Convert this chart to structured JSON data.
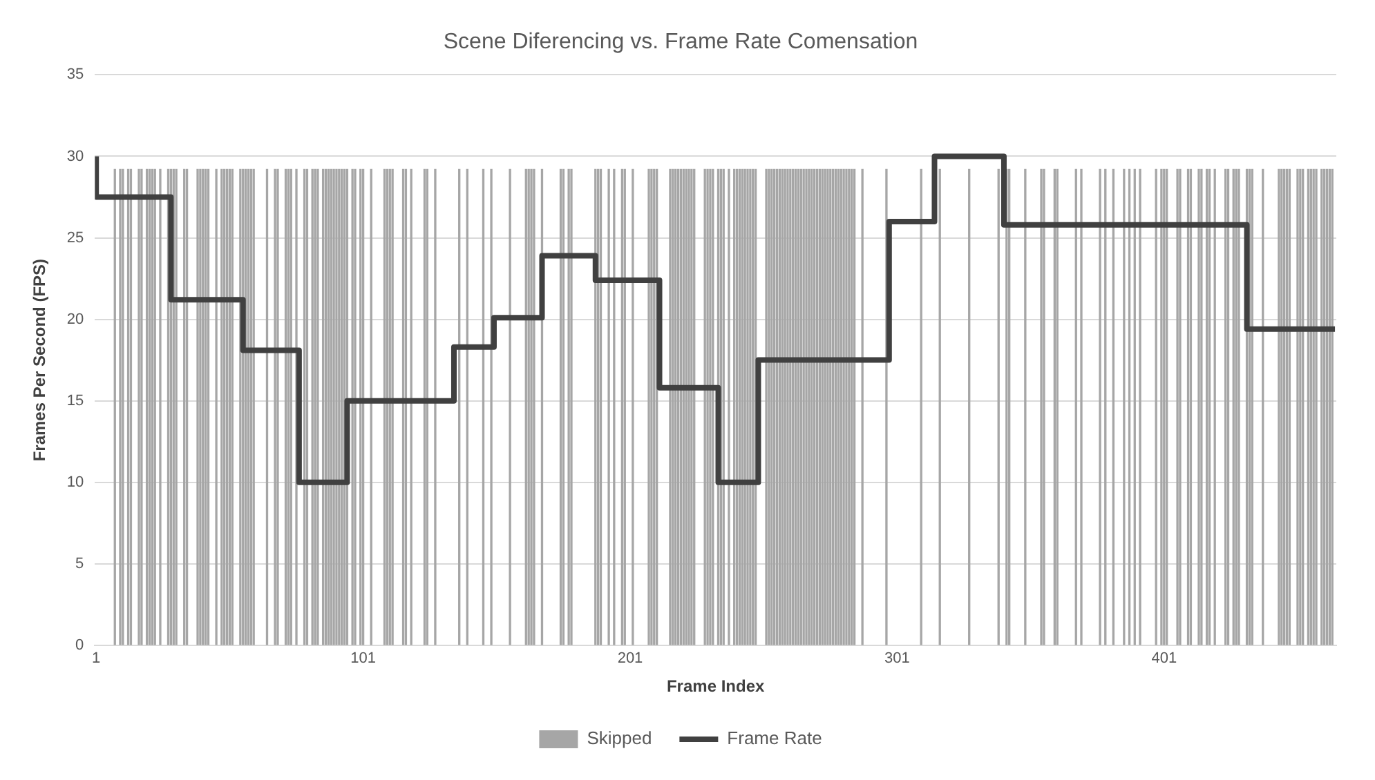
{
  "chart_data": {
    "type": "bar",
    "title": "Scene Diferencing vs. Frame Rate Comensation",
    "xlabel": "Frame Index",
    "ylabel": "Frames Per Second (FPS)",
    "xlim": [
      0.5,
      465.5
    ],
    "xticks": [
      1,
      101,
      201,
      301,
      401
    ],
    "ylim": [
      0,
      35
    ],
    "yticks": [
      0,
      5,
      10,
      15,
      20,
      25,
      30,
      35
    ],
    "grid": "y",
    "legend": "bottom",
    "series": [
      {
        "name": "Skipped",
        "color": "#a6a6a6",
        "x": [
          8,
          10,
          11,
          13,
          14,
          17,
          18,
          20,
          21,
          22,
          23,
          25,
          28,
          29,
          30,
          31,
          34,
          35,
          39,
          40,
          41,
          42,
          43,
          46,
          48,
          49,
          50,
          51,
          52,
          55,
          56,
          57,
          58,
          59,
          60,
          65,
          68,
          69,
          72,
          73,
          74,
          76,
          79,
          80,
          82,
          83,
          84,
          86,
          87,
          88,
          89,
          90,
          91,
          92,
          93,
          94,
          95,
          97,
          98,
          100,
          101,
          104,
          109,
          110,
          111,
          112,
          116,
          117,
          119,
          124,
          125,
          128,
          137,
          140,
          146,
          149,
          156,
          162,
          163,
          164,
          165,
          168,
          175,
          176,
          178,
          179,
          188,
          189,
          190,
          193,
          195,
          198,
          199,
          202,
          208,
          209,
          210,
          211,
          216,
          217,
          218,
          219,
          220,
          221,
          222,
          223,
          224,
          225,
          229,
          230,
          231,
          232,
          234,
          235,
          236,
          238,
          240,
          241,
          242,
          243,
          244,
          245,
          246,
          247,
          248,
          252,
          253,
          254,
          255,
          256,
          257,
          258,
          259,
          260,
          261,
          262,
          263,
          264,
          265,
          266,
          267,
          268,
          269,
          270,
          271,
          272,
          273,
          274,
          275,
          276,
          277,
          278,
          279,
          280,
          281,
          282,
          283,
          284,
          285,
          288,
          297,
          310,
          317,
          328,
          339,
          342,
          343,
          349,
          355,
          356,
          360,
          361,
          368,
          370,
          377,
          379,
          382,
          386,
          388,
          390,
          392,
          398,
          400,
          401,
          402,
          406,
          407,
          410,
          411,
          414,
          415,
          417,
          418,
          420,
          424,
          425,
          427,
          428,
          429,
          432,
          433,
          434,
          438,
          444,
          445,
          446,
          447,
          448,
          451,
          452,
          453,
          455,
          456,
          457,
          458,
          460,
          461,
          462,
          463,
          464
        ],
        "values": [
          29.2,
          29.2,
          29.2,
          29.2,
          29.2,
          29.2,
          29.2,
          29.2,
          29.2,
          29.2,
          29.2,
          29.2,
          29.2,
          29.2,
          29.2,
          29.2,
          29.2,
          29.2,
          29.2,
          29.2,
          29.2,
          29.2,
          29.2,
          29.2,
          29.2,
          29.2,
          29.2,
          29.2,
          29.2,
          29.2,
          29.2,
          29.2,
          29.2,
          29.2,
          29.2,
          29.2,
          29.2,
          29.2,
          29.2,
          29.2,
          29.2,
          29.2,
          29.2,
          29.2,
          29.2,
          29.2,
          29.2,
          29.2,
          29.2,
          29.2,
          29.2,
          29.2,
          29.2,
          29.2,
          29.2,
          29.2,
          29.2,
          29.2,
          29.2,
          29.2,
          29.2,
          29.2,
          29.2,
          29.2,
          29.2,
          29.2,
          29.2,
          29.2,
          29.2,
          29.2,
          29.2,
          29.2,
          29.2,
          29.2,
          29.2,
          29.2,
          29.2,
          29.2,
          29.2,
          29.2,
          29.2,
          29.2,
          29.2,
          29.2,
          29.2,
          29.2,
          29.2,
          29.2,
          29.2,
          29.2,
          29.2,
          29.2,
          29.2,
          29.2,
          29.2,
          29.2,
          29.2,
          29.2,
          29.2,
          29.2,
          29.2,
          29.2,
          29.2,
          29.2,
          29.2,
          29.2,
          29.2,
          29.2,
          29.2,
          29.2,
          29.2,
          29.2,
          29.2,
          29.2,
          29.2,
          29.2,
          29.2,
          29.2,
          29.2,
          29.2,
          29.2,
          29.2,
          29.2,
          29.2,
          29.2,
          29.2,
          29.2,
          29.2,
          29.2,
          29.2,
          29.2,
          29.2,
          29.2,
          29.2,
          29.2,
          29.2,
          29.2,
          29.2,
          29.2,
          29.2,
          29.2,
          29.2,
          29.2,
          29.2,
          29.2,
          29.2,
          29.2,
          29.2,
          29.2,
          29.2,
          29.2,
          29.2,
          29.2,
          29.2,
          29.2,
          29.2,
          29.2,
          29.2,
          29.2,
          29.2,
          29.2,
          29.2,
          29.2,
          29.2,
          29.2,
          29.2,
          29.2,
          29.2,
          29.2,
          29.2,
          29.2,
          29.2,
          29.2,
          29.2,
          29.2,
          29.2,
          29.2,
          29.2,
          29.2,
          29.2,
          29.2,
          29.2,
          29.2,
          29.2,
          29.2,
          29.2,
          29.2,
          29.2,
          29.2,
          29.2,
          29.2,
          29.2,
          29.2,
          29.2,
          29.2,
          29.2,
          29.2,
          29.2,
          29.2,
          29.2,
          29.2,
          29.2,
          29.2,
          29.2,
          29.2,
          29.2,
          29.2,
          29.2,
          29.2,
          29.2,
          29.2,
          29.2,
          29.2,
          29.2,
          29.2,
          29.2,
          29.2,
          29.2,
          29.2,
          29.2
        ]
      },
      {
        "name": "Frame Rate",
        "type": "step",
        "color": "#404040",
        "x": [
          1,
          29,
          56,
          77,
          95,
          135,
          150,
          168,
          188,
          212,
          234,
          249,
          298,
          315,
          341,
          432,
          457,
          465
        ],
        "values": [
          30,
          27.5,
          21.2,
          18.1,
          10,
          15,
          18.3,
          20.1,
          23.9,
          22.4,
          15.8,
          10,
          17.5,
          26,
          30,
          25.8,
          19.4,
          19.4
        ]
      }
    ]
  }
}
